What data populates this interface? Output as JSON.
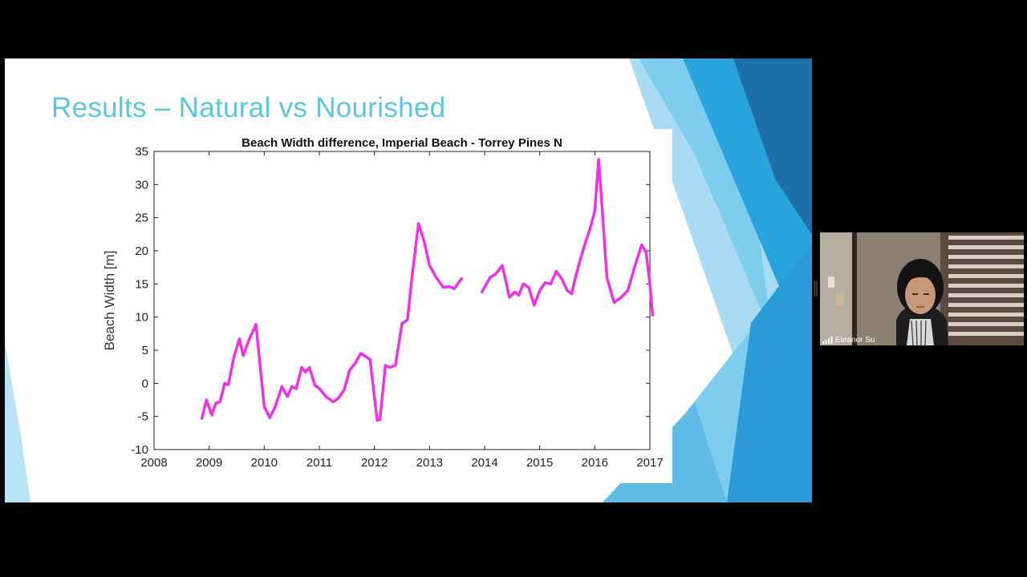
{
  "slide": {
    "title": "Results – Natural vs Nourished",
    "colors": {
      "title": "#5ec5dc",
      "accent_dark": "#1d6fa8",
      "accent_light": "#7fcdee",
      "accent_mid": "#29a3dd"
    }
  },
  "chart_data": {
    "type": "line",
    "title": "Beach Width difference, Imperial Beach - Torrey Pines N",
    "xlabel": "",
    "ylabel": "Beach Width [m]",
    "xlim": [
      2008,
      2017
    ],
    "ylim": [
      -10,
      35
    ],
    "x_ticks": [
      "2008",
      "2009",
      "2010",
      "2011",
      "2012",
      "2013",
      "2014",
      "2015",
      "2016",
      "2017"
    ],
    "y_ticks": [
      "-10",
      "-5",
      "0",
      "5",
      "10",
      "15",
      "20",
      "25",
      "30",
      "35"
    ],
    "grid": false,
    "line_color": "#f032e6",
    "segments": [
      [
        [
          2008.87,
          -5.3
        ],
        [
          2008.95,
          -2.5
        ],
        [
          2009.05,
          -4.8
        ],
        [
          2009.12,
          -3.0
        ],
        [
          2009.2,
          -2.8
        ],
        [
          2009.28,
          0.0
        ],
        [
          2009.35,
          -0.2
        ],
        [
          2009.45,
          4.0
        ],
        [
          2009.55,
          6.7
        ],
        [
          2009.62,
          4.2
        ],
        [
          2009.72,
          6.5
        ],
        [
          2009.85,
          8.9
        ],
        [
          2010.0,
          -3.5
        ],
        [
          2010.1,
          -5.2
        ],
        [
          2010.2,
          -3.5
        ],
        [
          2010.32,
          -0.5
        ],
        [
          2010.42,
          -2.0
        ],
        [
          2010.5,
          -0.5
        ],
        [
          2010.58,
          -0.8
        ],
        [
          2010.68,
          2.4
        ],
        [
          2010.75,
          1.7
        ],
        [
          2010.82,
          2.4
        ],
        [
          2010.92,
          -0.3
        ],
        [
          2011.0,
          -0.8
        ],
        [
          2011.12,
          -2.0
        ],
        [
          2011.25,
          -2.8
        ],
        [
          2011.35,
          -2.2
        ],
        [
          2011.45,
          -1.0
        ],
        [
          2011.55,
          2.0
        ],
        [
          2011.65,
          3.0
        ],
        [
          2011.75,
          4.5
        ],
        [
          2011.85,
          4.0
        ],
        [
          2011.92,
          3.6
        ],
        [
          2012.05,
          -5.6
        ],
        [
          2012.1,
          -5.5
        ],
        [
          2012.2,
          2.7
        ],
        [
          2012.28,
          2.4
        ],
        [
          2012.38,
          2.7
        ],
        [
          2012.5,
          9.0
        ],
        [
          2012.6,
          9.6
        ],
        [
          2012.68,
          16.0
        ],
        [
          2012.8,
          24.1
        ],
        [
          2012.9,
          21.5
        ],
        [
          2013.0,
          17.8
        ],
        [
          2013.12,
          16.0
        ],
        [
          2013.25,
          14.5
        ],
        [
          2013.35,
          14.6
        ],
        [
          2013.45,
          14.3
        ],
        [
          2013.58,
          15.8
        ]
      ],
      [
        [
          2013.95,
          13.8
        ],
        [
          2014.1,
          16.0
        ],
        [
          2014.2,
          16.5
        ],
        [
          2014.32,
          17.8
        ],
        [
          2014.45,
          13.0
        ],
        [
          2014.55,
          13.8
        ],
        [
          2014.62,
          13.3
        ],
        [
          2014.7,
          15.0
        ],
        [
          2014.8,
          14.5
        ],
        [
          2014.9,
          11.8
        ],
        [
          2015.0,
          14.0
        ],
        [
          2015.1,
          15.2
        ],
        [
          2015.2,
          15.0
        ],
        [
          2015.3,
          16.9
        ],
        [
          2015.4,
          15.8
        ],
        [
          2015.5,
          14.0
        ],
        [
          2015.58,
          13.5
        ],
        [
          2015.65,
          16.0
        ],
        [
          2015.72,
          18.2
        ],
        [
          2015.82,
          21.0
        ],
        [
          2015.92,
          23.5
        ],
        [
          2016.0,
          26.0
        ],
        [
          2016.07,
          33.8
        ],
        [
          2016.12,
          28.0
        ],
        [
          2016.22,
          16.0
        ],
        [
          2016.35,
          12.2
        ],
        [
          2016.48,
          13.0
        ],
        [
          2016.6,
          14.0
        ],
        [
          2016.72,
          17.5
        ],
        [
          2016.85,
          20.9
        ],
        [
          2016.93,
          19.8
        ],
        [
          2017.0,
          15.0
        ],
        [
          2017.05,
          10.3
        ]
      ]
    ]
  },
  "participant": {
    "name": "Eleanor Su",
    "signal_icon": "signal-bars-icon"
  }
}
